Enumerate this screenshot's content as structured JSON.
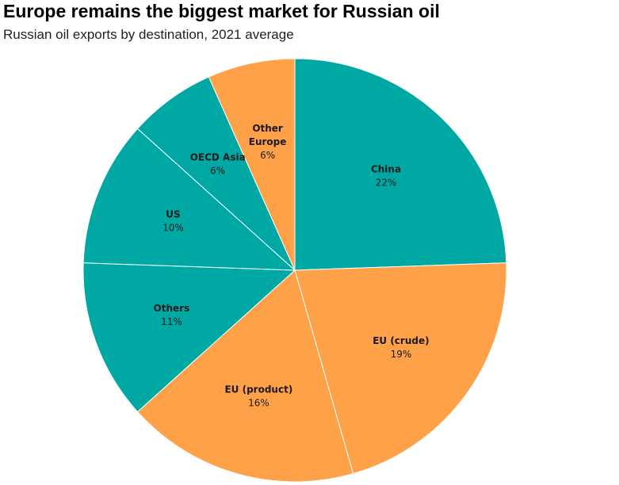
{
  "title": "Europe remains the biggest market for Russian oil",
  "subtitle": "Russian oil exports by destination, 2021 average",
  "colors": {
    "teal": "#00a8a4",
    "orange": "#ffa149",
    "stroke": "#ffffff"
  },
  "chart_data": {
    "type": "pie",
    "title": "Europe remains the biggest market for Russian oil",
    "subtitle": "Russian oil exports by destination, 2021 average",
    "slices": [
      {
        "label": "China",
        "value": 22,
        "value_label": "22%",
        "color": "#00a8a4"
      },
      {
        "label": "EU (crude)",
        "value": 19,
        "value_label": "19%",
        "color": "#ffa149"
      },
      {
        "label": "EU (product)",
        "value": 16,
        "value_label": "16%",
        "color": "#ffa149"
      },
      {
        "label": "Others",
        "value": 11,
        "value_label": "11%",
        "color": "#00a8a4"
      },
      {
        "label": "US",
        "value": 10,
        "value_label": "10%",
        "color": "#00a8a4"
      },
      {
        "label": "OECD Asia",
        "value": 6,
        "value_label": "6%",
        "color": "#00a8a4"
      },
      {
        "label": "Other\nEurope",
        "value": 6,
        "value_label": "6%",
        "color": "#ffa149"
      }
    ],
    "start": "12 o'clock",
    "direction": "clockwise",
    "legend": "none"
  }
}
